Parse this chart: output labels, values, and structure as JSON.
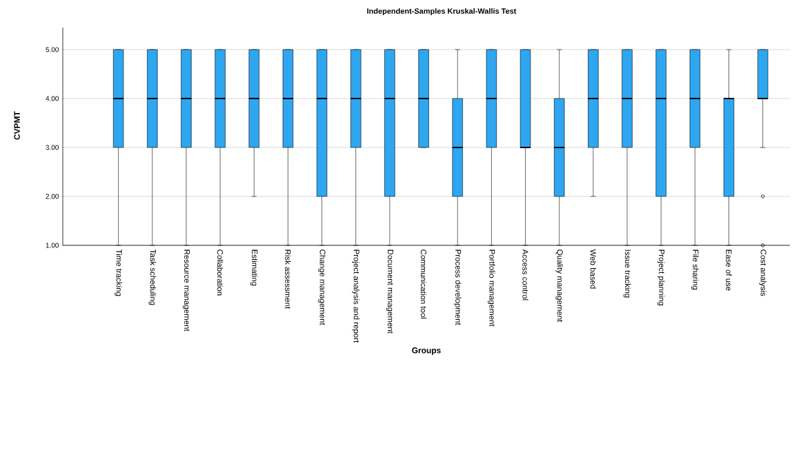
{
  "chart_data": {
    "type": "box",
    "title": "Independent-Samples Kruskal-Wallis Test",
    "xlabel": "Groups",
    "ylabel": "CVPMT",
    "categories": [
      "Time tracking",
      "Task scheduling",
      "Resource management",
      "Collaboration",
      "Estimating",
      "Risk assessment",
      "Change management",
      "Project analysis and report",
      "Document management",
      "Communication tool",
      "Process development",
      "Portfolio management",
      "Access control",
      "Quality management",
      "Web based",
      "Issue tracking",
      "Project planning",
      "File sharing",
      "Ease of use",
      "Cost analysis"
    ],
    "color": "#2ea6f0",
    "boxes": [
      {
        "low": 1,
        "q1": 3,
        "median": 4,
        "q3": 5,
        "high": 5
      },
      {
        "low": 1,
        "q1": 3,
        "median": 4,
        "q3": 5,
        "high": 5
      },
      {
        "low": 1,
        "q1": 3,
        "median": 4,
        "q3": 5,
        "high": 5
      },
      {
        "low": 1,
        "q1": 3,
        "median": 4,
        "q3": 5,
        "high": 5
      },
      {
        "low": 2,
        "q1": 3,
        "median": 4,
        "q3": 5,
        "high": 5
      },
      {
        "low": 1,
        "q1": 3,
        "median": 4,
        "q3": 5,
        "high": 5
      },
      {
        "low": 1,
        "q1": 2,
        "median": 4,
        "q3": 5,
        "high": 5
      },
      {
        "low": 1,
        "q1": 3,
        "median": 4,
        "q3": 5,
        "high": 5
      },
      {
        "low": 1,
        "q1": 2,
        "median": 4,
        "q3": 5,
        "high": 5
      },
      {
        "low": 3,
        "q1": 3,
        "median": 4,
        "q3": 5,
        "high": 5
      },
      {
        "low": 1,
        "q1": 2,
        "median": 3,
        "q3": 4,
        "high": 5
      },
      {
        "low": 1,
        "q1": 3,
        "median": 4,
        "q3": 5,
        "high": 5
      },
      {
        "low": 1,
        "q1": 3,
        "median": 3,
        "q3": 5,
        "high": 5
      },
      {
        "low": 1,
        "q1": 2,
        "median": 3,
        "q3": 4,
        "high": 5
      },
      {
        "low": 2,
        "q1": 3,
        "median": 4,
        "q3": 5,
        "high": 5
      },
      {
        "low": 1,
        "q1": 3,
        "median": 4,
        "q3": 5,
        "high": 5
      },
      {
        "low": 1,
        "q1": 2,
        "median": 4,
        "q3": 5,
        "high": 5
      },
      {
        "low": 1,
        "q1": 3,
        "median": 4,
        "q3": 5,
        "high": 5
      },
      {
        "low": 1,
        "q1": 2,
        "median": 4,
        "q3": 4,
        "high": 5
      },
      {
        "low": 3,
        "q1": 4,
        "median": 4,
        "q3": 5,
        "high": 5,
        "outliers": [
          2,
          1
        ]
      }
    ],
    "ylim": [
      1,
      5.45
    ],
    "yticks": [
      {
        "value": 1,
        "label": "1.00"
      },
      {
        "value": 2,
        "label": "2.00"
      },
      {
        "value": 3,
        "label": "3.00"
      },
      {
        "value": 4,
        "label": "4.00"
      },
      {
        "value": 5,
        "label": "5.00"
      }
    ],
    "grid": "y"
  }
}
